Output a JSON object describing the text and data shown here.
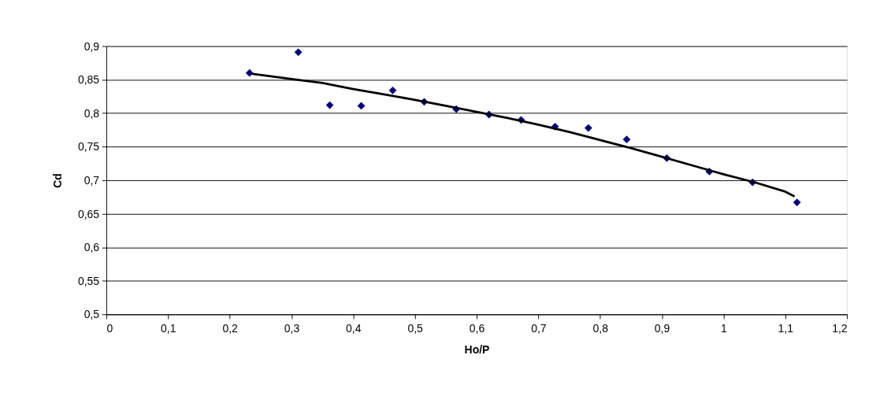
{
  "chart_data": {
    "type": "scatter",
    "xlabel": "Ho/P",
    "ylabel": "Cd",
    "xlim": [
      0,
      1.2
    ],
    "ylim": [
      0.5,
      0.9
    ],
    "xticks": [
      0,
      {
        "value": 0.1,
        "label": "0,1"
      },
      {
        "value": 0.2,
        "label": "0,2"
      },
      {
        "value": 0.3,
        "label": "0,3"
      },
      {
        "value": 0.4,
        "label": "0,4"
      },
      {
        "value": 0.5,
        "label": "0,5"
      },
      {
        "value": 0.6,
        "label": "0,6"
      },
      {
        "value": 0.7,
        "label": "0,7"
      },
      {
        "value": 0.8,
        "label": "0,8"
      },
      {
        "value": 0.9,
        "label": "0,9"
      },
      1,
      {
        "value": 1.1,
        "label": "1,1"
      },
      {
        "value": 1.2,
        "label": "1,2"
      }
    ],
    "yticks": [
      {
        "value": 0.5,
        "label": "0,5"
      },
      {
        "value": 0.55,
        "label": "0,55"
      },
      {
        "value": 0.6,
        "label": "0,6"
      },
      {
        "value": 0.65,
        "label": "0,65"
      },
      {
        "value": 0.7,
        "label": "0,7"
      },
      {
        "value": 0.75,
        "label": "0,75"
      },
      {
        "value": 0.8,
        "label": "0,8"
      },
      {
        "value": 0.85,
        "label": "0,85"
      },
      {
        "value": 0.9,
        "label": "0,9"
      }
    ],
    "grid": "y",
    "legend": false,
    "marker": "diamond",
    "series": [
      {
        "color": "#000080",
        "x": [
          0.232,
          0.311,
          0.362,
          0.413,
          0.464,
          0.515,
          0.567,
          0.62,
          0.672,
          0.727,
          0.781,
          0.843,
          0.908,
          0.977,
          1.047,
          1.119
        ],
        "values": [
          0.86,
          0.891,
          0.812,
          0.811,
          0.834,
          0.817,
          0.806,
          0.798,
          0.79,
          0.78,
          0.778,
          0.761,
          0.733,
          0.713,
          0.697,
          0.667
        ]
      },
      {
        "type": "line",
        "color": "#000000",
        "marker": "none",
        "line_style": "solid",
        "x": [
          0.235,
          0.3,
          0.35,
          0.4,
          0.45,
          0.5,
          0.55,
          0.6,
          0.65,
          0.7,
          0.75,
          0.8,
          0.85,
          0.9,
          0.95,
          1.0,
          1.05,
          1.1,
          1.115
        ],
        "values": [
          0.859,
          0.851,
          0.845,
          0.836,
          0.828,
          0.82,
          0.811,
          0.802,
          0.793,
          0.783,
          0.772,
          0.76,
          0.748,
          0.735,
          0.722,
          0.709,
          0.697,
          0.683,
          0.676
        ]
      }
    ]
  }
}
